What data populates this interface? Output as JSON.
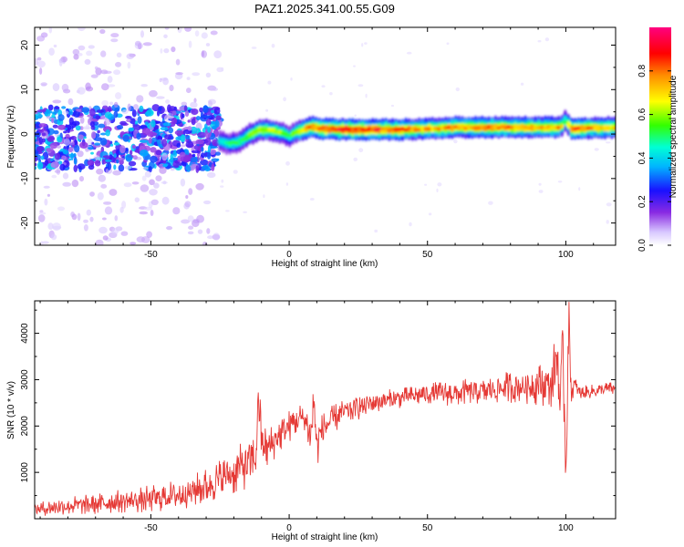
{
  "title": "PAZ1.2025.341.00.55.G09",
  "chart_data": [
    {
      "type": "heatmap",
      "title": "PAZ1.2025.341.00.55.G09",
      "xlabel": "Height of straight line (km)",
      "ylabel": "Frequency (Hz)",
      "xlim": [
        -92,
        118
      ],
      "ylim": [
        -25,
        24
      ],
      "xticks": [
        -50,
        0,
        50,
        100
      ],
      "yticks": [
        -20,
        -10,
        0,
        10,
        20
      ],
      "colorbar": {
        "label": "Normalized spectral amplitude",
        "range": [
          0,
          1
        ],
        "ticks": [
          "0.0",
          "0.2",
          "0.4",
          "0.6",
          "0.8"
        ],
        "tick_values": [
          0,
          0.2,
          0.4,
          0.6,
          0.8
        ]
      },
      "ridge": {
        "x": [
          -25,
          -22,
          -18,
          -14,
          -10,
          -6,
          -2,
          0,
          2,
          5,
          8,
          12,
          20,
          30,
          40,
          50,
          60,
          70,
          80,
          90,
          98,
          100,
          102,
          110,
          118
        ],
        "freq": [
          -1.5,
          -2.2,
          -1.8,
          0,
          1.0,
          0.8,
          0.3,
          -0.6,
          0.2,
          1.0,
          1.6,
          1.2,
          1.0,
          1.0,
          1.0,
          1.2,
          1.5,
          1.5,
          1.5,
          1.5,
          1.5,
          3,
          1.2,
          1.4,
          1.5
        ],
        "amplitude": [
          0.45,
          0.5,
          0.55,
          0.62,
          0.68,
          0.66,
          0.6,
          0.5,
          0.65,
          0.75,
          0.85,
          0.88,
          0.92,
          0.9,
          0.86,
          0.78,
          0.8,
          0.85,
          0.82,
          0.8,
          0.78,
          0.55,
          0.9,
          0.8,
          0.75
        ]
      },
      "noise_region": {
        "x_range": [
          -92,
          -25
        ],
        "freq_range": [
          -8,
          6
        ],
        "amplitude_range": [
          0.05,
          0.35
        ]
      }
    },
    {
      "type": "line",
      "xlabel": "Height of straight line (km)",
      "ylabel": "SNR (10 * v/v)",
      "xlim": [
        -92,
        118
      ],
      "ylim": [
        0,
        4700
      ],
      "xticks": [
        -50,
        0,
        50,
        100
      ],
      "yticks": [
        1000,
        2000,
        3000,
        4000
      ],
      "series": [
        {
          "name": "SNR",
          "color": "#e53935",
          "x": [
            -92,
            -85,
            -80,
            -75,
            -70,
            -65,
            -60,
            -55,
            -50,
            -45,
            -40,
            -35,
            -30,
            -25,
            -20,
            -15,
            -12,
            -11,
            -10,
            -8,
            -5,
            -2,
            0,
            2,
            5,
            8,
            9,
            10,
            11,
            13,
            15,
            20,
            25,
            30,
            35,
            40,
            45,
            50,
            55,
            60,
            65,
            70,
            75,
            80,
            85,
            90,
            95,
            97,
            98,
            99,
            100,
            101,
            102,
            103,
            105,
            110,
            115,
            118
          ],
          "y": [
            200,
            250,
            280,
            300,
            320,
            350,
            380,
            400,
            430,
            480,
            520,
            600,
            700,
            850,
            1000,
            1200,
            1300,
            2700,
            1700,
            1500,
            1700,
            1900,
            2000,
            2100,
            2200,
            1800,
            2600,
            1500,
            1800,
            2000,
            2100,
            2300,
            2400,
            2500,
            2550,
            2600,
            2650,
            2700,
            2700,
            2700,
            2750,
            2750,
            2800,
            2850,
            2850,
            2900,
            2900,
            3600,
            2200,
            3800,
            1000,
            4200,
            2700,
            2900,
            2700,
            2750,
            2800,
            2800
          ],
          "spread": [
            150,
            180,
            200,
            220,
            230,
            250,
            260,
            280,
            300,
            320,
            340,
            360,
            400,
            450,
            500,
            550,
            550,
            800,
            500,
            450,
            400,
            380,
            360,
            350,
            340,
            500,
            700,
            500,
            400,
            350,
            330,
            300,
            280,
            260,
            240,
            220,
            220,
            240,
            260,
            280,
            280,
            300,
            320,
            350,
            380,
            450,
            500,
            900,
            900,
            1000,
            900,
            1000,
            300,
            200,
            160,
            150,
            150,
            150
          ]
        }
      ]
    }
  ]
}
